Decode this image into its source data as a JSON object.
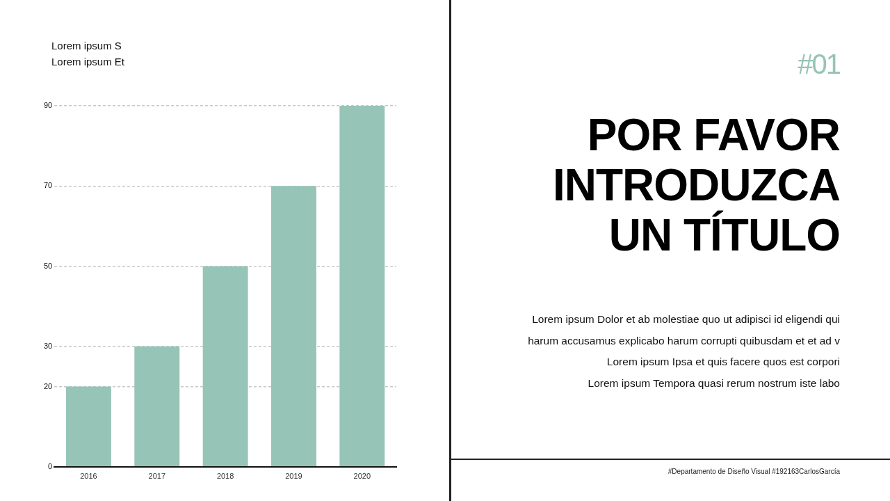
{
  "chart_data": {
    "type": "bar",
    "title": "POR FAVOR INTRODUZCA UN TÍTULO",
    "ylabel": "Lorem ipsum S\nLorem ipsum Et",
    "categories": [
      "2016",
      "2017",
      "2018",
      "2019",
      "2020"
    ],
    "values": [
      20,
      30,
      50,
      70,
      90
    ],
    "color": "#96c4b7",
    "ylim": [
      0,
      90
    ],
    "yticks": [
      0,
      20,
      30,
      50,
      70,
      90
    ],
    "grid": "y",
    "annotations": [
      "#01",
      "Lorem ipsum Dolor et ab molestiae quo ut adipisci id eligendi qui",
      "harum accusamus explicabo harum corrupti quibusdam et et ad v",
      "Lorem ipsum Ipsa et quis facere quos est corpori",
      "Lorem ipsum Tempora quasi rerum nostrum iste labo",
      "#Departamento de Diseño Visual #192163CarlosGarcía"
    ]
  }
}
